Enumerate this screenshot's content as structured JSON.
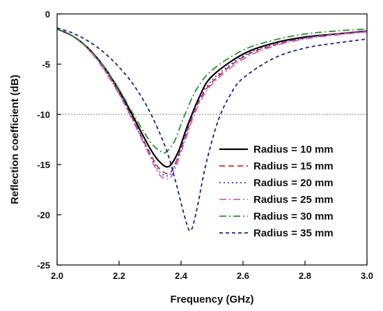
{
  "chart_data": {
    "type": "line",
    "title": "",
    "xlabel": "Frequency (GHz)",
    "ylabel": "Reflection coefficient (dB)",
    "xlim": [
      2.0,
      3.0
    ],
    "ylim": [
      -25,
      0
    ],
    "xticks": [
      2.0,
      2.2,
      2.4,
      2.6,
      2.8,
      3.0
    ],
    "xtick_labels": [
      "2.0",
      "2.2",
      "2.4",
      "2.6",
      "2.8",
      "3.0"
    ],
    "yticks": [
      0,
      -5,
      -10,
      -15,
      -20,
      -25
    ],
    "ytick_labels": [
      "0",
      "-5",
      "-10",
      "-15",
      "-20",
      "-25"
    ],
    "reference_line": {
      "y": -10,
      "style": "dotted",
      "color": "#555555"
    },
    "grid": false,
    "legend_position": "lower-right",
    "series": [
      {
        "name": "Radius = 10 mm",
        "color": "#000000",
        "dash": "solid",
        "points": [
          [
            2.0,
            -1.5
          ],
          [
            2.05,
            -2.2
          ],
          [
            2.1,
            -3.4
          ],
          [
            2.15,
            -5.2
          ],
          [
            2.2,
            -7.6
          ],
          [
            2.25,
            -10.5
          ],
          [
            2.3,
            -13.4
          ],
          [
            2.33,
            -14.7
          ],
          [
            2.36,
            -15.2
          ],
          [
            2.39,
            -13.8
          ],
          [
            2.42,
            -11.2
          ],
          [
            2.46,
            -8.2
          ],
          [
            2.5,
            -6.2
          ],
          [
            2.6,
            -4.0
          ],
          [
            2.7,
            -2.9
          ],
          [
            2.8,
            -2.3
          ],
          [
            2.9,
            -2.0
          ],
          [
            3.0,
            -1.7
          ]
        ]
      },
      {
        "name": "Radius = 15 mm",
        "color": "#c0392b",
        "dash": "dashed",
        "points": [
          [
            2.0,
            -1.5
          ],
          [
            2.05,
            -2.2
          ],
          [
            2.1,
            -3.5
          ],
          [
            2.15,
            -5.4
          ],
          [
            2.2,
            -7.9
          ],
          [
            2.25,
            -10.8
          ],
          [
            2.3,
            -13.9
          ],
          [
            2.33,
            -15.4
          ],
          [
            2.36,
            -15.9
          ],
          [
            2.38,
            -15.0
          ],
          [
            2.41,
            -12.6
          ],
          [
            2.45,
            -9.2
          ],
          [
            2.5,
            -6.8
          ],
          [
            2.6,
            -4.3
          ],
          [
            2.7,
            -3.1
          ],
          [
            2.8,
            -2.4
          ],
          [
            2.9,
            -2.0
          ],
          [
            3.0,
            -1.7
          ]
        ]
      },
      {
        "name": "Radius = 20 mm",
        "color": "#1f3fbf",
        "dash": "dotted",
        "points": [
          [
            2.0,
            -1.5
          ],
          [
            2.05,
            -2.2
          ],
          [
            2.1,
            -3.4
          ],
          [
            2.15,
            -5.3
          ],
          [
            2.2,
            -7.8
          ],
          [
            2.25,
            -10.9
          ],
          [
            2.3,
            -14.0
          ],
          [
            2.33,
            -15.7
          ],
          [
            2.36,
            -16.1
          ],
          [
            2.38,
            -15.1
          ],
          [
            2.41,
            -12.4
          ],
          [
            2.45,
            -9.0
          ],
          [
            2.5,
            -6.6
          ],
          [
            2.6,
            -4.2
          ],
          [
            2.7,
            -3.0
          ],
          [
            2.8,
            -2.4
          ],
          [
            2.9,
            -2.0
          ],
          [
            3.0,
            -1.7
          ]
        ]
      },
      {
        "name": "Radius = 25 mm",
        "color": "#d45ad4",
        "dash": "dashdot",
        "points": [
          [
            2.0,
            -1.5
          ],
          [
            2.05,
            -2.2
          ],
          [
            2.1,
            -3.5
          ],
          [
            2.15,
            -5.5
          ],
          [
            2.2,
            -8.0
          ],
          [
            2.25,
            -11.0
          ],
          [
            2.3,
            -14.2
          ],
          [
            2.33,
            -16.0
          ],
          [
            2.36,
            -16.4
          ],
          [
            2.38,
            -15.5
          ],
          [
            2.41,
            -12.9
          ],
          [
            2.45,
            -9.5
          ],
          [
            2.5,
            -7.0
          ],
          [
            2.6,
            -4.5
          ],
          [
            2.7,
            -3.2
          ],
          [
            2.8,
            -2.5
          ],
          [
            2.9,
            -2.1
          ],
          [
            3.0,
            -1.8
          ]
        ]
      },
      {
        "name": "Radius = 30 mm",
        "color": "#2e8b2e",
        "dash": "dashdot",
        "points": [
          [
            2.0,
            -1.5
          ],
          [
            2.05,
            -2.2
          ],
          [
            2.1,
            -3.4
          ],
          [
            2.15,
            -5.2
          ],
          [
            2.2,
            -7.5
          ],
          [
            2.25,
            -10.2
          ],
          [
            2.3,
            -12.7
          ],
          [
            2.33,
            -13.6
          ],
          [
            2.35,
            -13.8
          ],
          [
            2.38,
            -12.6
          ],
          [
            2.41,
            -10.2
          ],
          [
            2.45,
            -7.5
          ],
          [
            2.5,
            -5.6
          ],
          [
            2.6,
            -3.6
          ],
          [
            2.7,
            -2.6
          ],
          [
            2.8,
            -2.0
          ],
          [
            2.9,
            -1.7
          ],
          [
            3.0,
            -1.5
          ]
        ]
      },
      {
        "name": "Radius = 35 mm",
        "color": "#1a237e",
        "dash": "shortdash",
        "points": [
          [
            2.0,
            -1.4
          ],
          [
            2.05,
            -1.9
          ],
          [
            2.1,
            -2.7
          ],
          [
            2.15,
            -3.8
          ],
          [
            2.2,
            -5.3
          ],
          [
            2.25,
            -7.2
          ],
          [
            2.3,
            -9.8
          ],
          [
            2.35,
            -13.3
          ],
          [
            2.38,
            -16.4
          ],
          [
            2.41,
            -20.0
          ],
          [
            2.43,
            -21.6
          ],
          [
            2.45,
            -19.6
          ],
          [
            2.48,
            -15.0
          ],
          [
            2.52,
            -10.6
          ],
          [
            2.56,
            -8.0
          ],
          [
            2.6,
            -6.4
          ],
          [
            2.7,
            -4.4
          ],
          [
            2.8,
            -3.4
          ],
          [
            2.9,
            -2.9
          ],
          [
            3.0,
            -2.5
          ]
        ]
      }
    ]
  }
}
